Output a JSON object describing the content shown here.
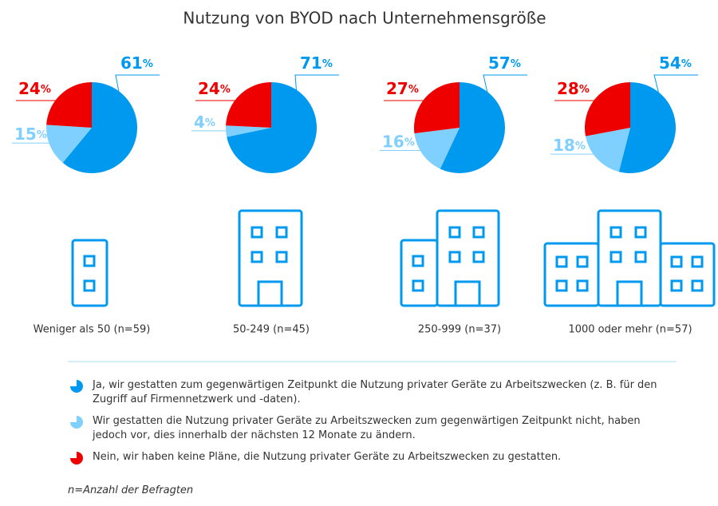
{
  "title": "Nutzung von BYOD nach Unternehmensgröße",
  "chart_data": [
    {
      "type": "pie",
      "label": "Weniger als 50 (n=59)",
      "values": [
        61,
        15,
        24
      ],
      "value_labels": [
        "61%",
        "15%",
        "24%"
      ],
      "colors": [
        "#0099f0",
        "#80d0ff",
        "#ee0000"
      ]
    },
    {
      "type": "pie",
      "label": "50-249 (n=45)",
      "values": [
        71,
        4,
        24
      ],
      "value_labels": [
        "71%",
        "4%",
        "24%"
      ],
      "colors": [
        "#0099f0",
        "#80d0ff",
        "#ee0000"
      ]
    },
    {
      "type": "pie",
      "label": "250-999 (n=37)",
      "values": [
        57,
        16,
        27
      ],
      "value_labels": [
        "57%",
        "16%",
        "27%"
      ],
      "colors": [
        "#0099f0",
        "#80d0ff",
        "#ee0000"
      ]
    },
    {
      "type": "pie",
      "label": "1000 oder mehr (n=57)",
      "values": [
        54,
        18,
        28
      ],
      "value_labels": [
        "54%",
        "18%",
        "28%"
      ],
      "colors": [
        "#0099f0",
        "#80d0ff",
        "#ee0000"
      ]
    }
  ],
  "legend": [
    {
      "label": "Ja, wir gestatten zum gegenwärtigen Zeitpunkt die Nutzung privater Geräte zu Arbeitszwecken (z. B. für den Zugriff auf Firmennetzwerk und -daten).",
      "color": "#0099f0"
    },
    {
      "label": "Wir gestatten die Nutzung privater Geräte zu Arbeitszwecken zum gegenwärtigen Zeitpunkt nicht, haben jedoch vor, dies innerhalb der nächsten 12 Monate zu ändern.",
      "color": "#80d0ff"
    },
    {
      "label": "Nein, wir haben keine Pläne, die Nutzung privater Geräte zu Arbeitszwecken zu gestatten.",
      "color": "#ee0000"
    }
  ],
  "footnote": "n=Anzahl der Befragten"
}
